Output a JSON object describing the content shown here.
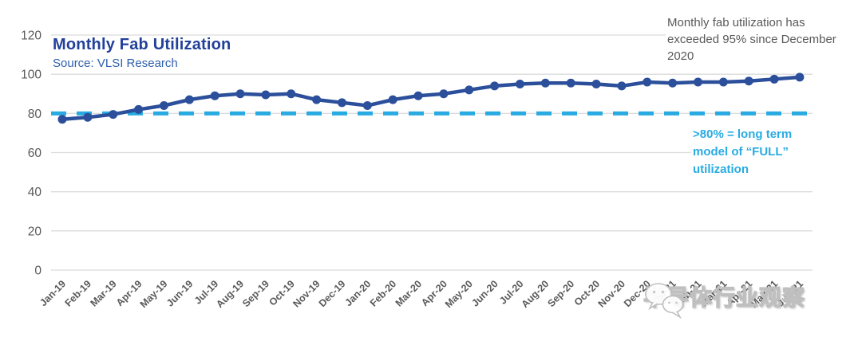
{
  "header": {
    "title": "Monthly Fab Utilization",
    "source": "Source: VLSI Research"
  },
  "annotations": {
    "note": "Monthly fab utilization has exceeded 95% since December 2020",
    "threshold_note": ">80% = long term model of “FULL” utilization"
  },
  "watermark": {
    "icon": "wechat-icon",
    "text": "半导体行业观察"
  },
  "colors": {
    "line": "#2B4F9B",
    "threshold": "#29ABE2",
    "title": "#21409A",
    "source": "#2E5FAC",
    "axis_text": "#595959",
    "grid": "#DCDCDC"
  },
  "chart_data": {
    "type": "line",
    "title": "Monthly Fab Utilization",
    "subtitle": "Source: VLSI Research",
    "categories": [
      "Jan-19",
      "Feb-19",
      "Mar-19",
      "Apr-19",
      "May-19",
      "Jun-19",
      "Jul-19",
      "Aug-19",
      "Sep-19",
      "Oct-19",
      "Nov-19",
      "Dec-19",
      "Jan-20",
      "Feb-20",
      "Mar-20",
      "Apr-20",
      "May-20",
      "Jun-20",
      "Jul-20",
      "Aug-20",
      "Sep-20",
      "Oct-20",
      "Nov-20",
      "Dec-20",
      "Jan-21",
      "Feb-21",
      "Mar-21",
      "Apr-21",
      "May-21",
      "Jun-21"
    ],
    "series": [
      {
        "name": "Monthly Fab Utilization (%)",
        "values": [
          77,
          78,
          79.5,
          82,
          84,
          87,
          89,
          90,
          89.5,
          90,
          87,
          85.5,
          84,
          87,
          89,
          90,
          92,
          94,
          95,
          95.5,
          95.5,
          95,
          94,
          96,
          95.5,
          96,
          96,
          96.5,
          97.5,
          98.5
        ]
      }
    ],
    "threshold": {
      "value": 80,
      "style": "dashed",
      "color": "#29ABE2",
      "label": ">80% = long term model of “FULL” utilization"
    },
    "annotation": "Monthly fab utilization has exceeded 95% since December 2020",
    "xlabel": "",
    "ylabel": "",
    "ylim": [
      0,
      120
    ],
    "yticks": [
      0,
      20,
      40,
      60,
      80,
      100,
      120
    ],
    "grid": true,
    "legend": "none",
    "x_tick_rotation": -45
  }
}
